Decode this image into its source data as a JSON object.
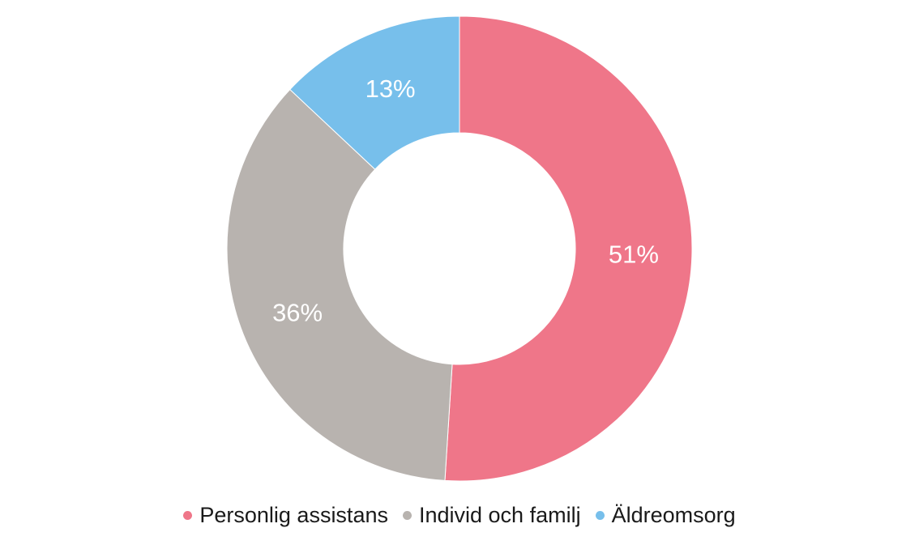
{
  "chart_data": {
    "type": "pie",
    "donut": true,
    "title": "",
    "categories": [
      "Personlig assistans",
      "Individ och familj",
      "Äldreomsorg"
    ],
    "values": [
      51,
      36,
      13
    ],
    "value_labels": [
      "51%",
      "36%",
      "13%"
    ],
    "colors": [
      "#ef7689",
      "#b8b3af",
      "#77bfeb"
    ],
    "legend": "bottom",
    "start": "top, clockwise"
  }
}
